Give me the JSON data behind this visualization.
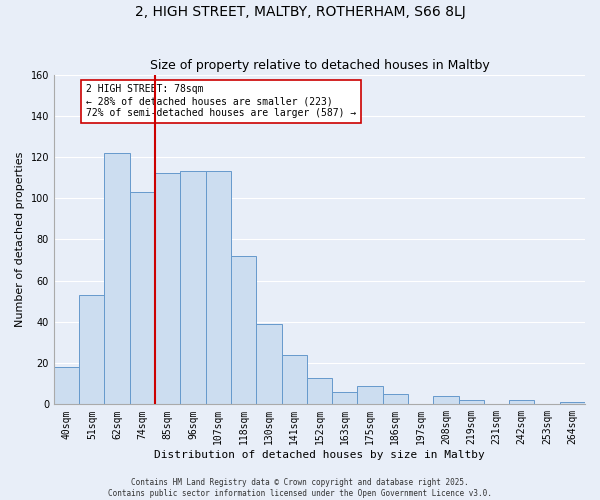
{
  "title1": "2, HIGH STREET, MALTBY, ROTHERHAM, S66 8LJ",
  "title2": "Size of property relative to detached houses in Maltby",
  "xlabel": "Distribution of detached houses by size in Maltby",
  "ylabel": "Number of detached properties",
  "bar_labels": [
    "40sqm",
    "51sqm",
    "62sqm",
    "74sqm",
    "85sqm",
    "96sqm",
    "107sqm",
    "118sqm",
    "130sqm",
    "141sqm",
    "152sqm",
    "163sqm",
    "175sqm",
    "186sqm",
    "197sqm",
    "208sqm",
    "219sqm",
    "231sqm",
    "242sqm",
    "253sqm",
    "264sqm"
  ],
  "bar_values": [
    18,
    53,
    122,
    103,
    112,
    113,
    113,
    72,
    39,
    24,
    13,
    6,
    9,
    5,
    0,
    4,
    2,
    0,
    2,
    0,
    1
  ],
  "bar_color": "#ccddf0",
  "bar_edge_color": "#6699cc",
  "vline_x": 3.5,
  "vline_color": "#cc0000",
  "ylim": [
    0,
    160
  ],
  "yticks": [
    0,
    20,
    40,
    60,
    80,
    100,
    120,
    140,
    160
  ],
  "annotation_title": "2 HIGH STREET: 78sqm",
  "annotation_line1": "← 28% of detached houses are smaller (223)",
  "annotation_line2": "72% of semi-detached houses are larger (587) →",
  "footer1": "Contains HM Land Registry data © Crown copyright and database right 2025.",
  "footer2": "Contains public sector information licensed under the Open Government Licence v3.0.",
  "bg_color": "#e8eef8",
  "grid_color": "#ffffff",
  "title1_fontsize": 10,
  "title2_fontsize": 9,
  "axis_label_fontsize": 8,
  "tick_fontsize": 7,
  "annot_fontsize": 7,
  "footer_fontsize": 5.5
}
